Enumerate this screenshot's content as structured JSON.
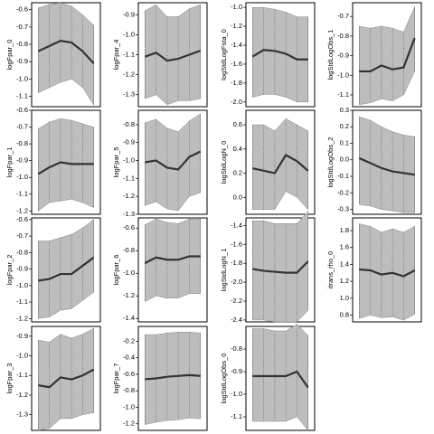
{
  "chart_data": [
    {
      "type": "line",
      "ylabel": "logFpar_0",
      "x": [
        1,
        2,
        3,
        4,
        5,
        6
      ],
      "xlim": [
        0.4,
        6.6
      ],
      "ylim": [
        -1.16,
        -0.56
      ],
      "yticks": [
        -0.6,
        -0.7,
        -0.8,
        -0.9,
        {
          "value": -1.0,
          "label": "-1.0"
        },
        -1.1
      ],
      "band_color": "#bdbdbd",
      "series": [
        {
          "color": "#333333",
          "values": [
            -0.84,
            -0.81,
            -0.78,
            -0.79,
            -0.84,
            -0.91
          ],
          "upper": [
            -0.59,
            -0.57,
            -0.56,
            -0.58,
            -0.63,
            -0.69
          ],
          "lower": [
            -1.08,
            -1.05,
            -1.02,
            -1.0,
            -1.05,
            -1.15
          ]
        }
      ]
    },
    {
      "type": "line",
      "ylabel": "logFpar_4",
      "x": [
        1,
        2,
        3,
        4,
        5,
        6
      ],
      "xlim": [
        0.4,
        6.6
      ],
      "ylim": [
        -1.36,
        -0.84
      ],
      "yticks": [
        -0.9,
        {
          "value": -1.0,
          "label": "-1.0"
        },
        -1.1,
        -1.2,
        -1.3
      ],
      "band_color": "#bdbdbd",
      "series": [
        {
          "color": "#333333",
          "values": [
            -1.11,
            -1.09,
            -1.13,
            -1.12,
            -1.1,
            -1.08
          ],
          "upper": [
            -0.88,
            -0.85,
            -0.91,
            -0.91,
            -0.87,
            -0.85
          ],
          "lower": [
            -1.32,
            -1.3,
            -1.35,
            -1.33,
            -1.33,
            -1.32
          ]
        }
      ]
    },
    {
      "type": "line",
      "ylabel": "logStdLogFsta_0",
      "x": [
        1,
        2,
        3,
        4,
        5,
        6
      ],
      "xlim": [
        0.4,
        6.6
      ],
      "ylim": [
        -2.05,
        -0.95
      ],
      "yticks": [
        {
          "value": -1.0,
          "label": "-1.0"
        },
        -1.2,
        -1.4,
        -1.6,
        -1.8,
        {
          "value": -2.0,
          "label": "-2.0"
        }
      ],
      "band_color": "#bdbdbd",
      "series": [
        {
          "color": "#333333",
          "values": [
            -1.52,
            -1.45,
            -1.46,
            -1.49,
            -1.55,
            -1.55
          ],
          "upper": [
            -1.0,
            -1.0,
            -1.02,
            -1.05,
            -1.1,
            -1.1
          ],
          "lower": [
            -1.95,
            -1.92,
            -1.92,
            -1.95,
            -2.0,
            -2.0
          ]
        }
      ]
    },
    {
      "type": "line",
      "ylabel": "logStdLogObs_1",
      "x": [
        1,
        2,
        3,
        4,
        5,
        6
      ],
      "xlim": [
        0.4,
        6.6
      ],
      "ylim": [
        -1.16,
        -0.63
      ],
      "yticks": [
        -0.7,
        -0.8,
        -0.9,
        {
          "value": -1.0,
          "label": "-1.0"
        },
        -1.1
      ],
      "band_color": "#bdbdbd",
      "series": [
        {
          "color": "#333333",
          "values": [
            -0.98,
            -0.98,
            -0.95,
            -0.97,
            -0.96,
            -0.81
          ],
          "upper": [
            -0.75,
            -0.76,
            -0.75,
            -0.76,
            -0.78,
            -0.65
          ],
          "lower": [
            -1.15,
            -1.14,
            -1.12,
            -1.13,
            -1.1,
            -0.98
          ]
        }
      ]
    },
    {
      "type": "line",
      "ylabel": "logFpar_1",
      "x": [
        1,
        2,
        3,
        4,
        5,
        6
      ],
      "xlim": [
        0.4,
        6.6
      ],
      "ylim": [
        -1.22,
        -0.6
      ],
      "yticks": [
        -0.6,
        -0.7,
        -0.8,
        -0.9,
        {
          "value": -1.0,
          "label": "-1.0"
        },
        -1.1,
        -1.2
      ],
      "band_color": "#bdbdbd",
      "series": [
        {
          "color": "#333333",
          "values": [
            -0.98,
            -0.94,
            -0.91,
            -0.92,
            -0.92,
            -0.92
          ],
          "upper": [
            -0.71,
            -0.67,
            -0.65,
            -0.66,
            -0.68,
            -0.7
          ],
          "lower": [
            -1.2,
            -1.15,
            -1.14,
            -1.13,
            -1.15,
            -1.18
          ]
        }
      ]
    },
    {
      "type": "line",
      "ylabel": "logFpar_5",
      "x": [
        1,
        2,
        3,
        4,
        5,
        6
      ],
      "xlim": [
        0.4,
        6.6
      ],
      "ylim": [
        -1.3,
        -0.72
      ],
      "yticks": [
        -0.8,
        -0.9,
        {
          "value": -1.0,
          "label": "-1.0"
        },
        -1.1,
        -1.2,
        -1.3
      ],
      "band_color": "#bdbdbd",
      "series": [
        {
          "color": "#333333",
          "values": [
            -1.01,
            -1.0,
            -1.04,
            -1.05,
            -0.98,
            -0.95
          ],
          "upper": [
            -0.79,
            -0.77,
            -0.82,
            -0.84,
            -0.78,
            -0.74
          ],
          "lower": [
            -1.25,
            -1.23,
            -1.27,
            -1.28,
            -1.2,
            -1.18
          ]
        }
      ]
    },
    {
      "type": "line",
      "ylabel": "logStdLogN_0",
      "x": [
        1,
        2,
        3,
        4,
        5,
        6
      ],
      "xlim": [
        0.4,
        6.6
      ],
      "ylim": [
        -0.14,
        0.72
      ],
      "yticks": [
        0.6,
        0.4,
        0.2,
        {
          "value": 0,
          "label": "0.0"
        }
      ],
      "band_color": "#bdbdbd",
      "series": [
        {
          "color": "#333333",
          "values": [
            0.24,
            0.22,
            0.2,
            0.35,
            0.3,
            0.22
          ],
          "upper": [
            0.6,
            0.6,
            0.55,
            0.65,
            0.6,
            0.55
          ],
          "lower": [
            -0.1,
            -0.1,
            -0.1,
            0.05,
            0.0,
            -0.1
          ]
        }
      ]
    },
    {
      "type": "line",
      "ylabel": "logStdLogObs_2",
      "x": [
        1,
        2,
        3,
        4,
        5,
        6
      ],
      "xlim": [
        0.4,
        6.6
      ],
      "ylim": [
        -0.33,
        0.3
      ],
      "yticks": [
        0.3,
        0.2,
        0.1,
        {
          "value": 0,
          "label": "0.0"
        },
        -0.1,
        -0.2,
        -0.3
      ],
      "band_color": "#bdbdbd",
      "series": [
        {
          "color": "#333333",
          "values": [
            0.01,
            -0.02,
            -0.05,
            -0.07,
            -0.08,
            -0.09
          ],
          "upper": [
            0.26,
            0.24,
            0.2,
            0.17,
            0.15,
            0.14
          ],
          "lower": [
            -0.27,
            -0.28,
            -0.3,
            -0.31,
            -0.32,
            -0.32
          ]
        }
      ]
    },
    {
      "type": "line",
      "ylabel": "logFpar_2",
      "x": [
        1,
        2,
        3,
        4,
        5,
        6
      ],
      "xlim": [
        0.4,
        6.6
      ],
      "ylim": [
        -1.22,
        -0.59
      ],
      "yticks": [
        -0.6,
        -0.7,
        -0.8,
        -0.9,
        {
          "value": -1.0,
          "label": "-1.0"
        },
        -1.1,
        -1.2
      ],
      "band_color": "#bdbdbd",
      "series": [
        {
          "color": "#333333",
          "values": [
            -0.97,
            -0.96,
            -0.93,
            -0.93,
            -0.88,
            -0.83
          ],
          "upper": [
            -0.73,
            -0.73,
            -0.71,
            -0.69,
            -0.65,
            -0.6
          ],
          "lower": [
            -1.2,
            -1.19,
            -1.15,
            -1.14,
            -1.09,
            -1.04
          ]
        }
      ]
    },
    {
      "type": "line",
      "ylabel": "logFpar_6",
      "x": [
        1,
        2,
        3,
        4,
        5,
        6
      ],
      "xlim": [
        0.4,
        6.6
      ],
      "ylim": [
        -1.43,
        -0.51
      ],
      "yticks": [
        -0.6,
        -0.8,
        {
          "value": -1.0,
          "label": "-1.0"
        },
        -1.2,
        -1.4
      ],
      "band_color": "#bdbdbd",
      "series": [
        {
          "color": "#333333",
          "values": [
            -0.91,
            -0.86,
            -0.88,
            -0.88,
            -0.85,
            -0.85
          ],
          "upper": [
            -0.57,
            -0.52,
            -0.55,
            -0.56,
            -0.52,
            -0.52
          ],
          "lower": [
            -1.25,
            -1.2,
            -1.22,
            -1.22,
            -1.18,
            -1.18
          ]
        }
      ]
    },
    {
      "type": "line",
      "ylabel": "logStdLogN_1",
      "x": [
        1,
        2,
        3,
        4,
        5,
        6
      ],
      "xlim": [
        0.4,
        6.6
      ],
      "ylim": [
        -2.42,
        -1.32
      ],
      "yticks": [
        -1.4,
        -1.6,
        -1.8,
        {
          "value": -2.0,
          "label": "-2.0"
        },
        -2.2,
        -2.4
      ],
      "band_color": "#bdbdbd",
      "series": [
        {
          "color": "#333333",
          "values": [
            -1.86,
            -1.88,
            -1.89,
            -1.9,
            -1.9,
            -1.78
          ],
          "upper": [
            -1.35,
            -1.35,
            -1.38,
            -1.38,
            -1.38,
            -1.25
          ],
          "lower": [
            -2.4,
            -2.4,
            -2.42,
            -2.42,
            -2.42,
            -2.3
          ]
        }
      ]
    },
    {
      "type": "line",
      "ylabel": "itrans_rho_0",
      "x": [
        1,
        2,
        3,
        4,
        5,
        6
      ],
      "xlim": [
        0.4,
        6.6
      ],
      "ylim": [
        0.72,
        1.95
      ],
      "yticks": [
        1.8,
        1.6,
        1.4,
        1.2,
        {
          "value": 1.0,
          "label": "1.0"
        },
        0.8
      ],
      "band_color": "#bdbdbd",
      "series": [
        {
          "color": "#333333",
          "values": [
            1.34,
            1.33,
            1.28,
            1.3,
            1.26,
            1.33
          ],
          "upper": [
            1.88,
            1.85,
            1.78,
            1.82,
            1.78,
            1.85
          ],
          "lower": [
            0.76,
            0.8,
            0.77,
            0.78,
            0.74,
            0.81
          ]
        }
      ]
    },
    {
      "type": "line",
      "ylabel": "logFpar_3",
      "x": [
        1,
        2,
        3,
        4,
        5,
        6
      ],
      "xlim": [
        0.4,
        6.6
      ],
      "ylim": [
        -1.38,
        -0.85
      ],
      "yticks": [
        -0.9,
        {
          "value": -1.0,
          "label": "-1.0"
        },
        -1.1,
        -1.2,
        -1.3
      ],
      "band_color": "#bdbdbd",
      "series": [
        {
          "color": "#333333",
          "values": [
            -1.15,
            -1.16,
            -1.11,
            -1.12,
            -1.1,
            -1.07
          ],
          "upper": [
            -0.92,
            -0.93,
            -0.89,
            -0.91,
            -0.89,
            -0.86
          ],
          "lower": [
            -1.38,
            -1.37,
            -1.32,
            -1.32,
            -1.3,
            -1.29
          ]
        }
      ]
    },
    {
      "type": "line",
      "ylabel": "logFpar_7",
      "x": [
        1,
        2,
        3,
        4,
        5,
        6
      ],
      "xlim": [
        0.4,
        6.6
      ],
      "ylim": [
        -1.28,
        -0.02
      ],
      "yticks": [
        -0.2,
        -0.4,
        -0.6,
        -0.8,
        {
          "value": -1.0,
          "label": "-1.0"
        },
        -1.2
      ],
      "band_color": "#bdbdbd",
      "series": [
        {
          "color": "#333333",
          "values": [
            -0.66,
            -0.65,
            -0.63,
            -0.62,
            -0.61,
            -0.62
          ],
          "upper": [
            -0.12,
            -0.12,
            -0.1,
            -0.09,
            -0.09,
            -0.1
          ],
          "lower": [
            -1.21,
            -1.18,
            -1.16,
            -1.15,
            -1.13,
            -1.14
          ]
        }
      ]
    },
    {
      "type": "line",
      "ylabel": "logStdLogObs_0",
      "x": [
        1,
        2,
        3,
        4,
        5,
        6
      ],
      "xlim": [
        0.4,
        6.6
      ],
      "ylim": [
        -1.16,
        -0.7
      ],
      "yticks": [
        -0.8,
        -0.9,
        {
          "value": -1.0,
          "label": "-1.0"
        },
        -1.1
      ],
      "band_color": "#bdbdbd",
      "series": [
        {
          "color": "#333333",
          "values": [
            -0.92,
            -0.92,
            -0.92,
            -0.92,
            -0.9,
            -0.97
          ],
          "upper": [
            -0.71,
            -0.71,
            -0.72,
            -0.72,
            -0.69,
            -0.74
          ],
          "lower": [
            -1.12,
            -1.12,
            -1.12,
            -1.12,
            -1.1,
            -1.16
          ]
        }
      ]
    }
  ]
}
